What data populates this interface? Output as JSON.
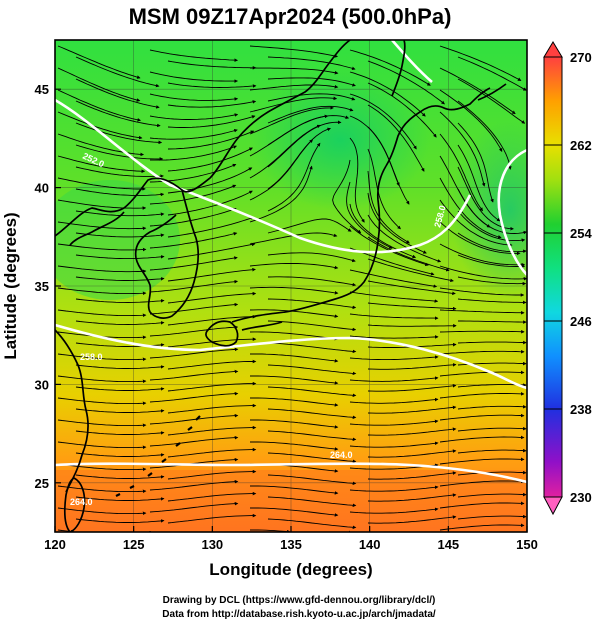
{
  "title": "MSM 09Z17Apr2024 (500.0hPa)",
  "xlabel": "Longitude (degrees)",
  "ylabel": "Latitude  (degrees)",
  "credit_line1": "Drawing by DCL (https://www.gfd-dennou.org/library/dcl/)",
  "credit_line2": "Data from http://database.rish.kyoto-u.ac.jp/arch/jmadata/",
  "x_ticks": [
    "120",
    "125",
    "130",
    "135",
    "140",
    "145",
    "150"
  ],
  "y_ticks": [
    "25",
    "30",
    "35",
    "40",
    "45"
  ],
  "colorbar_ticks": [
    "270",
    "262",
    "254",
    "246",
    "238",
    "230"
  ],
  "colorbar_colors": [
    "#e02090",
    "#b010c0",
    "#6020d0",
    "#2040e8",
    "#1090ff",
    "#10d0e0",
    "#10e0a0",
    "#20d040",
    "#40e020",
    "#a0e010",
    "#e0e000",
    "#ffb000",
    "#ff7020",
    "#ff5040"
  ],
  "contour_labels": [
    "252.0",
    "258.0",
    "258.0",
    "264.0",
    "264.0"
  ],
  "chart_data": {
    "type": "heatmap",
    "title": "MSM 09Z17Apr2024 (500.0hPa)",
    "xlabel": "Longitude (degrees)",
    "ylabel": "Latitude  (degrees)",
    "xlim": [
      120,
      150
    ],
    "ylim": [
      22.5,
      47.5
    ],
    "color_range": [
      230,
      270
    ],
    "colorbar_ticks": [
      270,
      262,
      254,
      246,
      238,
      230
    ],
    "contour_levels": [
      252,
      258,
      264
    ],
    "grid": true,
    "overlay": "streamlines"
  }
}
